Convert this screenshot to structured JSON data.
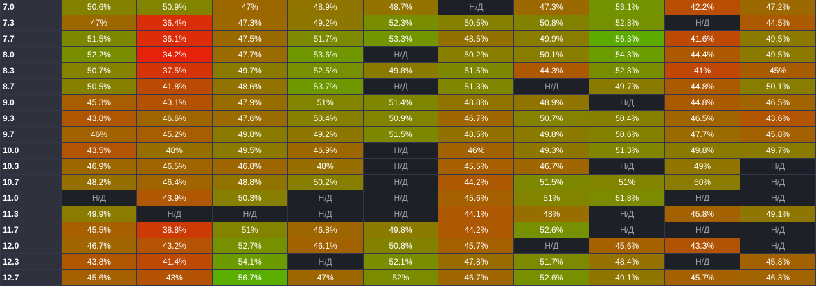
{
  "na_label": "Н/Д",
  "colors": {
    "low": "#e8210a",
    "mid": "#9a6a00",
    "high": "#58b000",
    "na": "#1e2028",
    "row_label_bg": "#2f323d",
    "grid_line": "#34374a"
  },
  "rows": [
    {
      "label": "7.0",
      "cells": [
        50.6,
        50.9,
        47,
        48.9,
        48.7,
        null,
        47.3,
        53.1,
        42.2,
        47.2
      ]
    },
    {
      "label": "7.3",
      "cells": [
        47,
        36.4,
        47.3,
        49.2,
        52.3,
        50.5,
        50.8,
        52.8,
        null,
        44.5
      ]
    },
    {
      "label": "7.7",
      "cells": [
        51.5,
        36.1,
        47.5,
        51.7,
        53.3,
        48.5,
        49.9,
        56.3,
        41.6,
        49.5
      ]
    },
    {
      "label": "8.0",
      "cells": [
        52.2,
        34.2,
        47.7,
        53.6,
        null,
        50.2,
        50.1,
        54.3,
        44.4,
        49.5
      ]
    },
    {
      "label": "8.3",
      "cells": [
        50.7,
        37.5,
        49.7,
        52.5,
        49.8,
        51.5,
        44.3,
        52.3,
        41,
        45
      ]
    },
    {
      "label": "8.7",
      "cells": [
        50.5,
        41.8,
        48.6,
        53.7,
        null,
        51.3,
        null,
        49.7,
        44.8,
        50.1
      ]
    },
    {
      "label": "9.0",
      "cells": [
        45.3,
        43.1,
        47.9,
        51,
        51.4,
        48.8,
        48.9,
        null,
        44.8,
        46.5
      ]
    },
    {
      "label": "9.3",
      "cells": [
        43.8,
        46.6,
        47.6,
        50.4,
        50.9,
        46.7,
        50.7,
        50.4,
        46.5,
        43.6
      ]
    },
    {
      "label": "9.7",
      "cells": [
        46,
        45.2,
        49.8,
        49.2,
        51.5,
        48.5,
        49.8,
        50.6,
        47.7,
        45.8
      ]
    },
    {
      "label": "10.0",
      "cells": [
        43.5,
        48,
        49.5,
        46.9,
        null,
        46,
        49.3,
        51.3,
        49.8,
        49.7
      ]
    },
    {
      "label": "10.3",
      "cells": [
        46.9,
        46.5,
        46.8,
        48,
        null,
        45.5,
        46.7,
        null,
        49,
        null
      ]
    },
    {
      "label": "10.7",
      "cells": [
        48.2,
        46.4,
        48.8,
        50.2,
        null,
        44.2,
        51.5,
        51,
        50,
        null
      ]
    },
    {
      "label": "11.0",
      "cells": [
        null,
        43.9,
        50.3,
        null,
        null,
        45.6,
        51,
        51.8,
        null,
        null
      ]
    },
    {
      "label": "11.3",
      "cells": [
        49.9,
        null,
        null,
        null,
        null,
        44.1,
        48,
        null,
        45.8,
        49.1
      ]
    },
    {
      "label": "11.7",
      "cells": [
        45.5,
        38.8,
        51,
        46.8,
        49.8,
        44.2,
        52.6,
        null,
        null,
        null
      ]
    },
    {
      "label": "12.0",
      "cells": [
        46.7,
        43.2,
        52.7,
        46.1,
        50.8,
        45.7,
        null,
        45.6,
        43.3,
        null
      ]
    },
    {
      "label": "12.3",
      "cells": [
        43.8,
        41.4,
        54.1,
        null,
        52.1,
        47.8,
        51.7,
        48.4,
        null,
        45.8
      ]
    },
    {
      "label": "12.7",
      "cells": [
        45.6,
        43,
        56.7,
        47,
        52,
        46.7,
        52.6,
        49.1,
        45.7,
        46.3
      ]
    }
  ]
}
